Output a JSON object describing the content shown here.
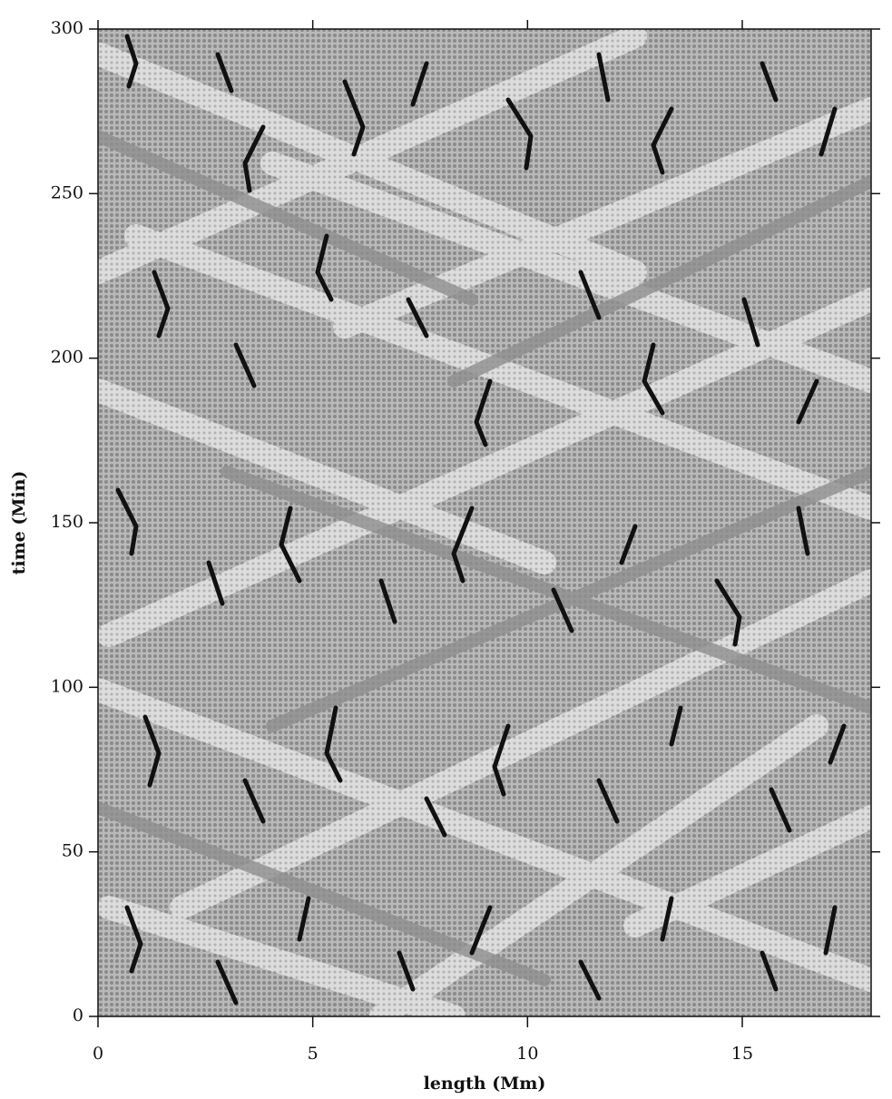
{
  "chart_data": {
    "type": "image",
    "xlabel": "length (Mm)",
    "ylabel": "time (Min)",
    "xlim": [
      0,
      18
    ],
    "xticks": [
      0,
      5,
      10,
      15
    ],
    "ylim": [
      0,
      300
    ],
    "yticks": [
      0,
      50,
      100,
      150,
      200,
      250,
      300
    ]
  }
}
